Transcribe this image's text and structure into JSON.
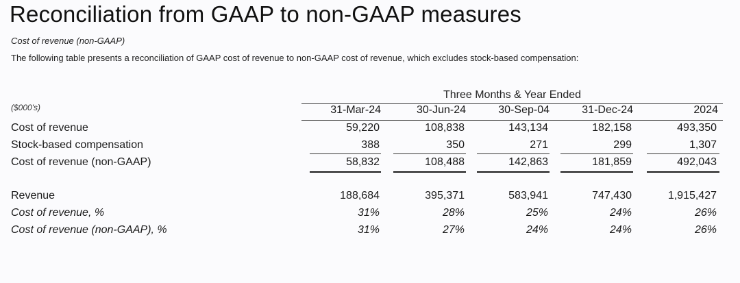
{
  "title": "Reconciliation from GAAP to non-GAAP measures",
  "subtitle": "Cost of revenue (non-GAAP)",
  "description": "The following table presents a reconciliation of GAAP cost of revenue to non-GAAP cost of revenue, which excludes stock-based compensation:",
  "table": {
    "period_header": "Three Months & Year Ended",
    "units_label": "($000's)",
    "columns": [
      "31-Mar-24",
      "30-Jun-24",
      "30-Sep-04",
      "31-Dec-24",
      "2024"
    ],
    "rows": [
      {
        "label": "Cost of revenue",
        "values": [
          "59,220",
          "108,838",
          "143,134",
          "182,158",
          "493,350"
        ]
      },
      {
        "label": "Stock-based compensation",
        "values": [
          "388",
          "350",
          "271",
          "299",
          "1,307"
        ]
      },
      {
        "label": "Cost of revenue (non-GAAP)",
        "values": [
          "58,832",
          "108,488",
          "142,863",
          "181,859",
          "492,043"
        ]
      },
      {
        "label": "Revenue",
        "values": [
          "188,684",
          "395,371",
          "583,941",
          "747,430",
          "1,915,427"
        ]
      },
      {
        "label": "Cost of revenue, %",
        "values": [
          "31%",
          "28%",
          "25%",
          "24%",
          "26%"
        ]
      },
      {
        "label": "Cost of revenue (non-GAAP), %",
        "values": [
          "31%",
          "27%",
          "24%",
          "24%",
          "26%"
        ]
      }
    ]
  }
}
